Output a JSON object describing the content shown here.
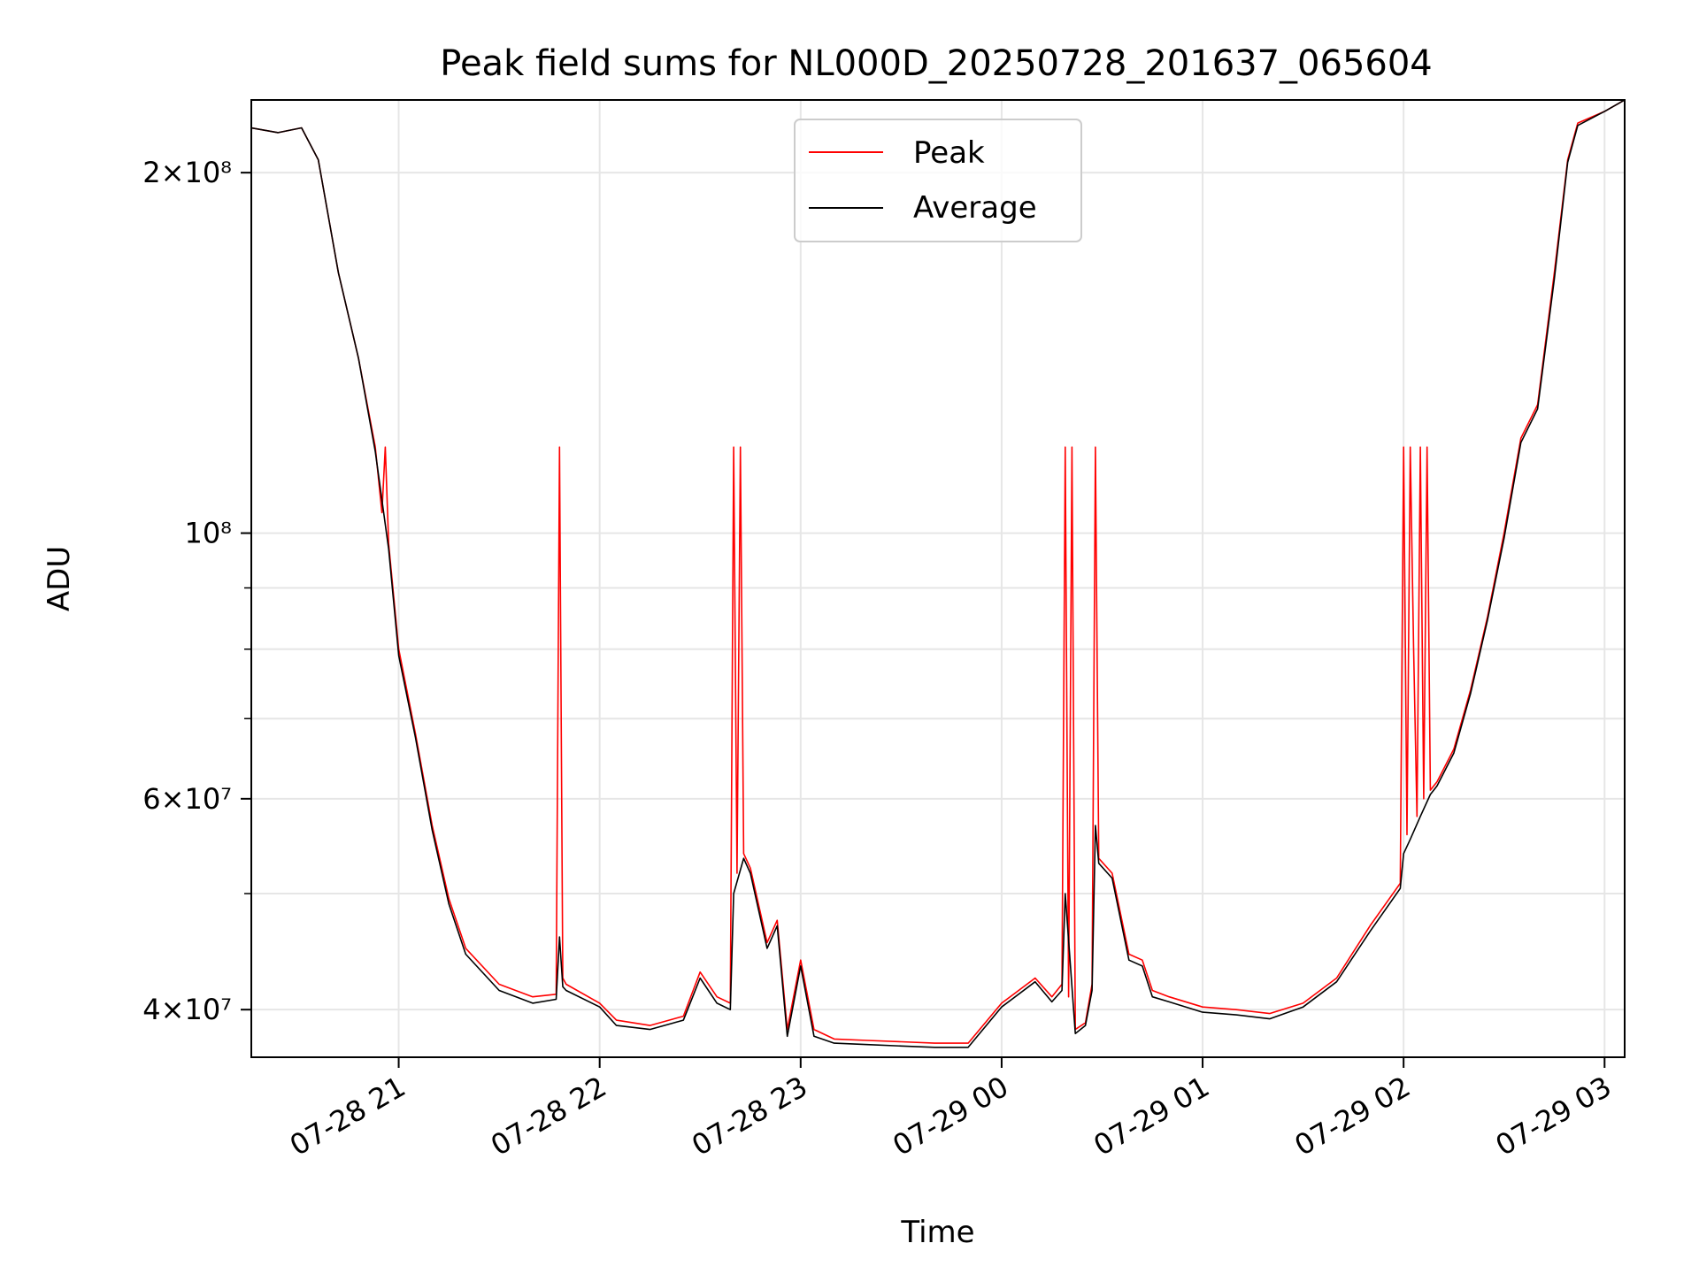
{
  "chart_data": {
    "type": "line",
    "title": "Peak field sums for NL000D_20250728_201637_065604",
    "xlabel": "Time",
    "ylabel": "ADU",
    "y_scale": "log",
    "grid": true,
    "legend_position": "top-center",
    "x_range": [
      "2025-07-28 20:16",
      "2025-07-29 03:06"
    ],
    "ylim": [
      36500000,
      230000000
    ],
    "x_ticks": [
      "07-28 21",
      "07-28 22",
      "07-28 23",
      "07-29 00",
      "07-29 01",
      "07-29 02",
      "07-29 03"
    ],
    "x_tick_values": [
      "2025-07-28 21:00",
      "2025-07-28 22:00",
      "2025-07-28 23:00",
      "2025-07-29 00:00",
      "2025-07-29 01:00",
      "2025-07-29 02:00",
      "2025-07-29 03:00"
    ],
    "y_ticks": [
      {
        "label": "2×10⁸",
        "value": 200000000
      },
      {
        "label": "10⁸",
        "value": 100000000
      },
      {
        "label": "6×10⁷",
        "value": 60000000
      },
      {
        "label": "4×10⁷",
        "value": 40000000
      }
    ],
    "series": [
      {
        "name": "Peak",
        "color": "#ff0000",
        "x": [
          "2025-07-28 20:16",
          "2025-07-28 20:24",
          "2025-07-28 20:31",
          "2025-07-28 20:36",
          "2025-07-28 20:42",
          "2025-07-28 20:48",
          "2025-07-28 20:53",
          "2025-07-28 20:55",
          "2025-07-28 20:56",
          "2025-07-28 20:57",
          "2025-07-28 21:00",
          "2025-07-28 21:05",
          "2025-07-28 21:10",
          "2025-07-28 21:15",
          "2025-07-28 21:20",
          "2025-07-28 21:30",
          "2025-07-28 21:40",
          "2025-07-28 21:47",
          "2025-07-28 21:48",
          "2025-07-28 21:49",
          "2025-07-28 21:50",
          "2025-07-28 22:00",
          "2025-07-28 22:05",
          "2025-07-28 22:15",
          "2025-07-28 22:25",
          "2025-07-28 22:30",
          "2025-07-28 22:35",
          "2025-07-28 22:39",
          "2025-07-28 22:40",
          "2025-07-28 22:41",
          "2025-07-28 22:42",
          "2025-07-28 22:43",
          "2025-07-28 22:45",
          "2025-07-28 22:50",
          "2025-07-28 22:53",
          "2025-07-28 22:56",
          "2025-07-28 23:00",
          "2025-07-28 23:04",
          "2025-07-28 23:10",
          "2025-07-28 23:20",
          "2025-07-28 23:30",
          "2025-07-28 23:40",
          "2025-07-28 23:50",
          "2025-07-29 00:00",
          "2025-07-29 00:10",
          "2025-07-29 00:15",
          "2025-07-29 00:18",
          "2025-07-29 00:19",
          "2025-07-29 00:20",
          "2025-07-29 00:21",
          "2025-07-29 00:22",
          "2025-07-29 00:25",
          "2025-07-29 00:27",
          "2025-07-29 00:28",
          "2025-07-29 00:29",
          "2025-07-29 00:33",
          "2025-07-29 00:38",
          "2025-07-29 00:42",
          "2025-07-29 00:45",
          "2025-07-29 00:50",
          "2025-07-29 01:00",
          "2025-07-29 01:10",
          "2025-07-29 01:20",
          "2025-07-29 01:30",
          "2025-07-29 01:40",
          "2025-07-29 01:50",
          "2025-07-29 01:59",
          "2025-07-29 02:00",
          "2025-07-29 02:01",
          "2025-07-29 02:02",
          "2025-07-29 02:03",
          "2025-07-29 02:04",
          "2025-07-29 02:05",
          "2025-07-29 02:06",
          "2025-07-29 02:07",
          "2025-07-29 02:08",
          "2025-07-29 02:10",
          "2025-07-29 02:15",
          "2025-07-29 02:20",
          "2025-07-29 02:25",
          "2025-07-29 02:30",
          "2025-07-29 02:35",
          "2025-07-29 02:40",
          "2025-07-29 02:45",
          "2025-07-29 02:49",
          "2025-07-29 02:52",
          "2025-07-29 03:00",
          "2025-07-29 03:06"
        ],
        "y": [
          218000000,
          216000000,
          218000000,
          205000000,
          165000000,
          140000000,
          118000000,
          104000000,
          118000000,
          98000000,
          80000000,
          68000000,
          57000000,
          49500000,
          45000000,
          42000000,
          41000000,
          41200000,
          118000000,
          42500000,
          42000000,
          40500000,
          39200000,
          38800000,
          39500000,
          43000000,
          41000000,
          40500000,
          118000000,
          52000000,
          118000000,
          54000000,
          52500000,
          45500000,
          47500000,
          38500000,
          44000000,
          38500000,
          37800000,
          37700000,
          37600000,
          37500000,
          37500000,
          40500000,
          42500000,
          41000000,
          42000000,
          118000000,
          41000000,
          118000000,
          38500000,
          39000000,
          42000000,
          118000000,
          53500000,
          52000000,
          44500000,
          44000000,
          41500000,
          41000000,
          40200000,
          40000000,
          39700000,
          40500000,
          42500000,
          47000000,
          51000000,
          118000000,
          56000000,
          118000000,
          80000000,
          58000000,
          118000000,
          60000000,
          118000000,
          61000000,
          62000000,
          66000000,
          74000000,
          85000000,
          100000000,
          120000000,
          128000000,
          165000000,
          205000000,
          220000000,
          225000000,
          230000000
        ]
      },
      {
        "name": "Average",
        "color": "#000000",
        "x": [
          "2025-07-28 20:16",
          "2025-07-28 20:24",
          "2025-07-28 20:31",
          "2025-07-28 20:36",
          "2025-07-28 20:42",
          "2025-07-28 20:48",
          "2025-07-28 20:53",
          "2025-07-28 20:57",
          "2025-07-28 21:00",
          "2025-07-28 21:05",
          "2025-07-28 21:10",
          "2025-07-28 21:15",
          "2025-07-28 21:20",
          "2025-07-28 21:30",
          "2025-07-28 21:40",
          "2025-07-28 21:47",
          "2025-07-28 21:48",
          "2025-07-28 21:49",
          "2025-07-28 21:50",
          "2025-07-28 22:00",
          "2025-07-28 22:05",
          "2025-07-28 22:15",
          "2025-07-28 22:25",
          "2025-07-28 22:30",
          "2025-07-28 22:35",
          "2025-07-28 22:39",
          "2025-07-28 22:40",
          "2025-07-28 22:43",
          "2025-07-28 22:45",
          "2025-07-28 22:50",
          "2025-07-28 22:53",
          "2025-07-28 22:56",
          "2025-07-28 23:00",
          "2025-07-28 23:04",
          "2025-07-28 23:10",
          "2025-07-28 23:20",
          "2025-07-28 23:30",
          "2025-07-28 23:40",
          "2025-07-28 23:50",
          "2025-07-29 00:00",
          "2025-07-29 00:10",
          "2025-07-29 00:15",
          "2025-07-29 00:18",
          "2025-07-29 00:19",
          "2025-07-29 00:22",
          "2025-07-29 00:25",
          "2025-07-29 00:27",
          "2025-07-29 00:28",
          "2025-07-29 00:29",
          "2025-07-29 00:33",
          "2025-07-29 00:38",
          "2025-07-29 00:42",
          "2025-07-29 00:45",
          "2025-07-29 00:50",
          "2025-07-29 01:00",
          "2025-07-29 01:10",
          "2025-07-29 01:20",
          "2025-07-29 01:30",
          "2025-07-29 01:40",
          "2025-07-29 01:50",
          "2025-07-29 01:59",
          "2025-07-29 02:00",
          "2025-07-29 02:02",
          "2025-07-29 02:05",
          "2025-07-29 02:08",
          "2025-07-29 02:10",
          "2025-07-29 02:15",
          "2025-07-29 02:20",
          "2025-07-29 02:25",
          "2025-07-29 02:30",
          "2025-07-29 02:35",
          "2025-07-29 02:40",
          "2025-07-29 02:45",
          "2025-07-29 02:49",
          "2025-07-29 02:52",
          "2025-07-29 03:00",
          "2025-07-29 03:06"
        ],
        "y": [
          218000000,
          216000000,
          218000000,
          205000000,
          165000000,
          140000000,
          117000000,
          97000000,
          79000000,
          67500000,
          56500000,
          49000000,
          44500000,
          41500000,
          40500000,
          40800000,
          46000000,
          41800000,
          41500000,
          40200000,
          38800000,
          38500000,
          39200000,
          42500000,
          40500000,
          40000000,
          50000000,
          53500000,
          52000000,
          45000000,
          47000000,
          38000000,
          43500000,
          38000000,
          37500000,
          37400000,
          37300000,
          37200000,
          37200000,
          40200000,
          42200000,
          40600000,
          41500000,
          50000000,
          38200000,
          38800000,
          41500000,
          57000000,
          53000000,
          51500000,
          44000000,
          43500000,
          41000000,
          40600000,
          39800000,
          39600000,
          39300000,
          40200000,
          42200000,
          46500000,
          50500000,
          54000000,
          55500000,
          58000000,
          60500000,
          61500000,
          65500000,
          73500000,
          84500000,
          99000000,
          119000000,
          127000000,
          163000000,
          204000000,
          219000000,
          225000000,
          230000000
        ]
      }
    ]
  }
}
